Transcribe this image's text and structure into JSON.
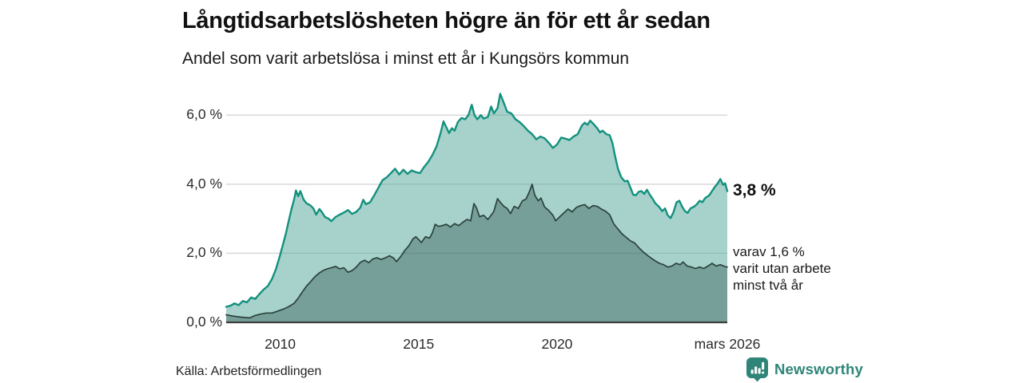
{
  "header": {
    "title": "Långtidsarbetslösheten högre än för ett år sedan",
    "subtitle": "Andel som varit arbetslösa i minst ett år i Kungsörs kommun"
  },
  "footer": {
    "source": "Källa: Arbetsförmedlingen",
    "brand": "Newsworthy"
  },
  "chart_data": {
    "type": "area",
    "title": "Långtidsarbetslösheten högre än för ett år sedan",
    "subtitle": "Andel som varit arbetslösa i minst ett år i Kungsörs kommun",
    "unit": "%",
    "grid": true,
    "x_domain": [
      2008.05,
      2026.15
    ],
    "y_domain": [
      0,
      6.7
    ],
    "yticks": {
      "values": [
        6,
        4,
        2,
        0
      ],
      "labels": [
        "6,0 %",
        "4,0 %",
        "2,0 %",
        "0,0 %"
      ]
    },
    "xticks": {
      "values": [
        2010,
        2015,
        2020,
        2026.15
      ],
      "labels": [
        "2010",
        "2015",
        "2020",
        "mars 2026"
      ]
    },
    "colors": {
      "grid": "#d8d8d8",
      "axis": "#3d3d3d",
      "accent": "#14917e",
      "brand": "#2e8577"
    },
    "annotations": {
      "latest_total": "3,8 %",
      "latest_total_value": 3.8,
      "secondary_lines": [
        "varav 1,6 %",
        "varit utan arbete",
        "minst två år"
      ],
      "latest_secondary_value": 1.6
    },
    "series": [
      {
        "name": "arbetslösa minst ett år",
        "stroke": "#14917e",
        "stroke_width": 2.4,
        "fill": "rgba(77,166,152,0.5)",
        "points": [
          [
            2008.05,
            0.45
          ],
          [
            2008.2,
            0.48
          ],
          [
            2008.35,
            0.55
          ],
          [
            2008.5,
            0.5
          ],
          [
            2008.65,
            0.62
          ],
          [
            2008.8,
            0.58
          ],
          [
            2008.95,
            0.72
          ],
          [
            2009.1,
            0.68
          ],
          [
            2009.25,
            0.82
          ],
          [
            2009.4,
            0.95
          ],
          [
            2009.55,
            1.05
          ],
          [
            2009.7,
            1.25
          ],
          [
            2009.85,
            1.55
          ],
          [
            2010.0,
            1.95
          ],
          [
            2010.1,
            2.25
          ],
          [
            2010.2,
            2.55
          ],
          [
            2010.3,
            2.9
          ],
          [
            2010.4,
            3.25
          ],
          [
            2010.5,
            3.55
          ],
          [
            2010.57,
            3.82
          ],
          [
            2010.65,
            3.65
          ],
          [
            2010.73,
            3.8
          ],
          [
            2010.85,
            3.55
          ],
          [
            2010.95,
            3.45
          ],
          [
            2011.1,
            3.38
          ],
          [
            2011.2,
            3.3
          ],
          [
            2011.3,
            3.12
          ],
          [
            2011.42,
            3.28
          ],
          [
            2011.5,
            3.2
          ],
          [
            2011.62,
            3.05
          ],
          [
            2011.75,
            3.0
          ],
          [
            2011.85,
            2.93
          ],
          [
            2012.0,
            3.05
          ],
          [
            2012.15,
            3.12
          ],
          [
            2012.3,
            3.18
          ],
          [
            2012.45,
            3.25
          ],
          [
            2012.6,
            3.14
          ],
          [
            2012.75,
            3.2
          ],
          [
            2012.9,
            3.33
          ],
          [
            2013.0,
            3.55
          ],
          [
            2013.1,
            3.42
          ],
          [
            2013.25,
            3.48
          ],
          [
            2013.4,
            3.68
          ],
          [
            2013.55,
            3.9
          ],
          [
            2013.7,
            4.12
          ],
          [
            2013.85,
            4.2
          ],
          [
            2014.0,
            4.32
          ],
          [
            2014.15,
            4.45
          ],
          [
            2014.3,
            4.28
          ],
          [
            2014.45,
            4.42
          ],
          [
            2014.6,
            4.3
          ],
          [
            2014.75,
            4.4
          ],
          [
            2014.9,
            4.35
          ],
          [
            2015.05,
            4.32
          ],
          [
            2015.2,
            4.5
          ],
          [
            2015.35,
            4.65
          ],
          [
            2015.5,
            4.85
          ],
          [
            2015.65,
            5.1
          ],
          [
            2015.8,
            5.5
          ],
          [
            2015.9,
            5.82
          ],
          [
            2016.0,
            5.65
          ],
          [
            2016.1,
            5.48
          ],
          [
            2016.2,
            5.62
          ],
          [
            2016.3,
            5.55
          ],
          [
            2016.42,
            5.8
          ],
          [
            2016.55,
            5.92
          ],
          [
            2016.68,
            5.88
          ],
          [
            2016.8,
            6.0
          ],
          [
            2016.92,
            6.3
          ],
          [
            2017.02,
            6.0
          ],
          [
            2017.12,
            5.88
          ],
          [
            2017.25,
            6.0
          ],
          [
            2017.35,
            5.9
          ],
          [
            2017.5,
            5.95
          ],
          [
            2017.62,
            6.25
          ],
          [
            2017.72,
            6.05
          ],
          [
            2017.85,
            6.2
          ],
          [
            2017.95,
            6.62
          ],
          [
            2018.08,
            6.35
          ],
          [
            2018.2,
            6.1
          ],
          [
            2018.35,
            6.05
          ],
          [
            2018.5,
            5.88
          ],
          [
            2018.65,
            5.8
          ],
          [
            2018.8,
            5.68
          ],
          [
            2018.95,
            5.55
          ],
          [
            2019.1,
            5.45
          ],
          [
            2019.25,
            5.3
          ],
          [
            2019.4,
            5.38
          ],
          [
            2019.55,
            5.33
          ],
          [
            2019.7,
            5.2
          ],
          [
            2019.85,
            5.05
          ],
          [
            2020.0,
            5.15
          ],
          [
            2020.15,
            5.35
          ],
          [
            2020.3,
            5.32
          ],
          [
            2020.45,
            5.28
          ],
          [
            2020.6,
            5.38
          ],
          [
            2020.75,
            5.45
          ],
          [
            2020.9,
            5.7
          ],
          [
            2021.0,
            5.78
          ],
          [
            2021.1,
            5.72
          ],
          [
            2021.2,
            5.84
          ],
          [
            2021.32,
            5.74
          ],
          [
            2021.45,
            5.62
          ],
          [
            2021.55,
            5.5
          ],
          [
            2021.65,
            5.55
          ],
          [
            2021.78,
            5.45
          ],
          [
            2021.9,
            5.42
          ],
          [
            2022.0,
            5.2
          ],
          [
            2022.1,
            4.8
          ],
          [
            2022.2,
            4.45
          ],
          [
            2022.32,
            4.2
          ],
          [
            2022.45,
            4.08
          ],
          [
            2022.55,
            4.1
          ],
          [
            2022.65,
            3.9
          ],
          [
            2022.75,
            3.7
          ],
          [
            2022.85,
            3.68
          ],
          [
            2022.95,
            3.78
          ],
          [
            2023.05,
            3.8
          ],
          [
            2023.15,
            3.72
          ],
          [
            2023.25,
            3.84
          ],
          [
            2023.35,
            3.7
          ],
          [
            2023.45,
            3.58
          ],
          [
            2023.55,
            3.45
          ],
          [
            2023.68,
            3.35
          ],
          [
            2023.8,
            3.22
          ],
          [
            2023.9,
            3.3
          ],
          [
            2024.0,
            3.1
          ],
          [
            2024.1,
            3.02
          ],
          [
            2024.2,
            3.18
          ],
          [
            2024.32,
            3.48
          ],
          [
            2024.42,
            3.52
          ],
          [
            2024.52,
            3.35
          ],
          [
            2024.62,
            3.22
          ],
          [
            2024.72,
            3.17
          ],
          [
            2024.82,
            3.3
          ],
          [
            2024.95,
            3.35
          ],
          [
            2025.05,
            3.42
          ],
          [
            2025.15,
            3.52
          ],
          [
            2025.25,
            3.48
          ],
          [
            2025.35,
            3.6
          ],
          [
            2025.5,
            3.68
          ],
          [
            2025.6,
            3.8
          ],
          [
            2025.7,
            3.92
          ],
          [
            2025.8,
            4.02
          ],
          [
            2025.9,
            4.15
          ],
          [
            2026.0,
            3.98
          ],
          [
            2026.07,
            4.03
          ],
          [
            2026.15,
            3.8
          ]
        ]
      },
      {
        "name": "varav utan arbete minst två år",
        "stroke": "#2c423c",
        "stroke_width": 1.7,
        "fill": "rgba(38,77,68,0.38)",
        "points": [
          [
            2008.05,
            0.22
          ],
          [
            2008.3,
            0.18
          ],
          [
            2008.6,
            0.15
          ],
          [
            2008.9,
            0.13
          ],
          [
            2009.1,
            0.2
          ],
          [
            2009.3,
            0.24
          ],
          [
            2009.5,
            0.27
          ],
          [
            2009.7,
            0.27
          ],
          [
            2009.9,
            0.32
          ],
          [
            2010.1,
            0.38
          ],
          [
            2010.3,
            0.45
          ],
          [
            2010.5,
            0.55
          ],
          [
            2010.65,
            0.7
          ],
          [
            2010.8,
            0.88
          ],
          [
            2010.95,
            1.05
          ],
          [
            2011.1,
            1.18
          ],
          [
            2011.25,
            1.32
          ],
          [
            2011.4,
            1.42
          ],
          [
            2011.55,
            1.5
          ],
          [
            2011.7,
            1.55
          ],
          [
            2011.85,
            1.58
          ],
          [
            2012.0,
            1.62
          ],
          [
            2012.15,
            1.55
          ],
          [
            2012.3,
            1.58
          ],
          [
            2012.45,
            1.45
          ],
          [
            2012.6,
            1.5
          ],
          [
            2012.75,
            1.6
          ],
          [
            2012.9,
            1.74
          ],
          [
            2013.05,
            1.8
          ],
          [
            2013.2,
            1.73
          ],
          [
            2013.35,
            1.84
          ],
          [
            2013.5,
            1.87
          ],
          [
            2013.65,
            1.82
          ],
          [
            2013.8,
            1.87
          ],
          [
            2013.95,
            1.93
          ],
          [
            2014.1,
            1.86
          ],
          [
            2014.2,
            1.76
          ],
          [
            2014.35,
            1.9
          ],
          [
            2014.5,
            2.08
          ],
          [
            2014.65,
            2.22
          ],
          [
            2014.8,
            2.42
          ],
          [
            2014.9,
            2.48
          ],
          [
            2015.0,
            2.4
          ],
          [
            2015.1,
            2.31
          ],
          [
            2015.25,
            2.48
          ],
          [
            2015.4,
            2.44
          ],
          [
            2015.5,
            2.6
          ],
          [
            2015.6,
            2.84
          ],
          [
            2015.72,
            2.78
          ],
          [
            2015.85,
            2.8
          ],
          [
            2016.0,
            2.84
          ],
          [
            2016.15,
            2.76
          ],
          [
            2016.3,
            2.86
          ],
          [
            2016.45,
            2.8
          ],
          [
            2016.6,
            2.9
          ],
          [
            2016.75,
            2.98
          ],
          [
            2016.88,
            2.94
          ],
          [
            2017.0,
            3.44
          ],
          [
            2017.1,
            3.3
          ],
          [
            2017.2,
            3.06
          ],
          [
            2017.35,
            3.1
          ],
          [
            2017.5,
            2.98
          ],
          [
            2017.62,
            3.1
          ],
          [
            2017.72,
            3.22
          ],
          [
            2017.85,
            3.58
          ],
          [
            2017.95,
            3.48
          ],
          [
            2018.08,
            3.36
          ],
          [
            2018.2,
            3.3
          ],
          [
            2018.32,
            3.15
          ],
          [
            2018.45,
            3.36
          ],
          [
            2018.6,
            3.3
          ],
          [
            2018.75,
            3.52
          ],
          [
            2018.88,
            3.57
          ],
          [
            2019.0,
            3.78
          ],
          [
            2019.1,
            4.0
          ],
          [
            2019.2,
            3.68
          ],
          [
            2019.32,
            3.52
          ],
          [
            2019.42,
            3.6
          ],
          [
            2019.55,
            3.34
          ],
          [
            2019.7,
            3.24
          ],
          [
            2019.85,
            3.1
          ],
          [
            2019.95,
            2.94
          ],
          [
            2020.1,
            3.06
          ],
          [
            2020.25,
            3.17
          ],
          [
            2020.4,
            3.28
          ],
          [
            2020.55,
            3.2
          ],
          [
            2020.7,
            3.33
          ],
          [
            2020.85,
            3.38
          ],
          [
            2021.0,
            3.41
          ],
          [
            2021.15,
            3.3
          ],
          [
            2021.3,
            3.38
          ],
          [
            2021.45,
            3.36
          ],
          [
            2021.6,
            3.28
          ],
          [
            2021.75,
            3.22
          ],
          [
            2021.9,
            3.12
          ],
          [
            2022.05,
            2.85
          ],
          [
            2022.2,
            2.7
          ],
          [
            2022.35,
            2.56
          ],
          [
            2022.5,
            2.46
          ],
          [
            2022.65,
            2.36
          ],
          [
            2022.8,
            2.3
          ],
          [
            2022.95,
            2.17
          ],
          [
            2023.1,
            2.05
          ],
          [
            2023.25,
            1.95
          ],
          [
            2023.4,
            1.86
          ],
          [
            2023.55,
            1.78
          ],
          [
            2023.7,
            1.71
          ],
          [
            2023.85,
            1.67
          ],
          [
            2024.0,
            1.6
          ],
          [
            2024.15,
            1.63
          ],
          [
            2024.3,
            1.71
          ],
          [
            2024.45,
            1.67
          ],
          [
            2024.55,
            1.75
          ],
          [
            2024.7,
            1.63
          ],
          [
            2024.85,
            1.6
          ],
          [
            2025.0,
            1.56
          ],
          [
            2025.15,
            1.6
          ],
          [
            2025.3,
            1.56
          ],
          [
            2025.45,
            1.63
          ],
          [
            2025.6,
            1.71
          ],
          [
            2025.75,
            1.63
          ],
          [
            2025.9,
            1.67
          ],
          [
            2026.05,
            1.62
          ],
          [
            2026.15,
            1.6
          ]
        ]
      }
    ]
  }
}
